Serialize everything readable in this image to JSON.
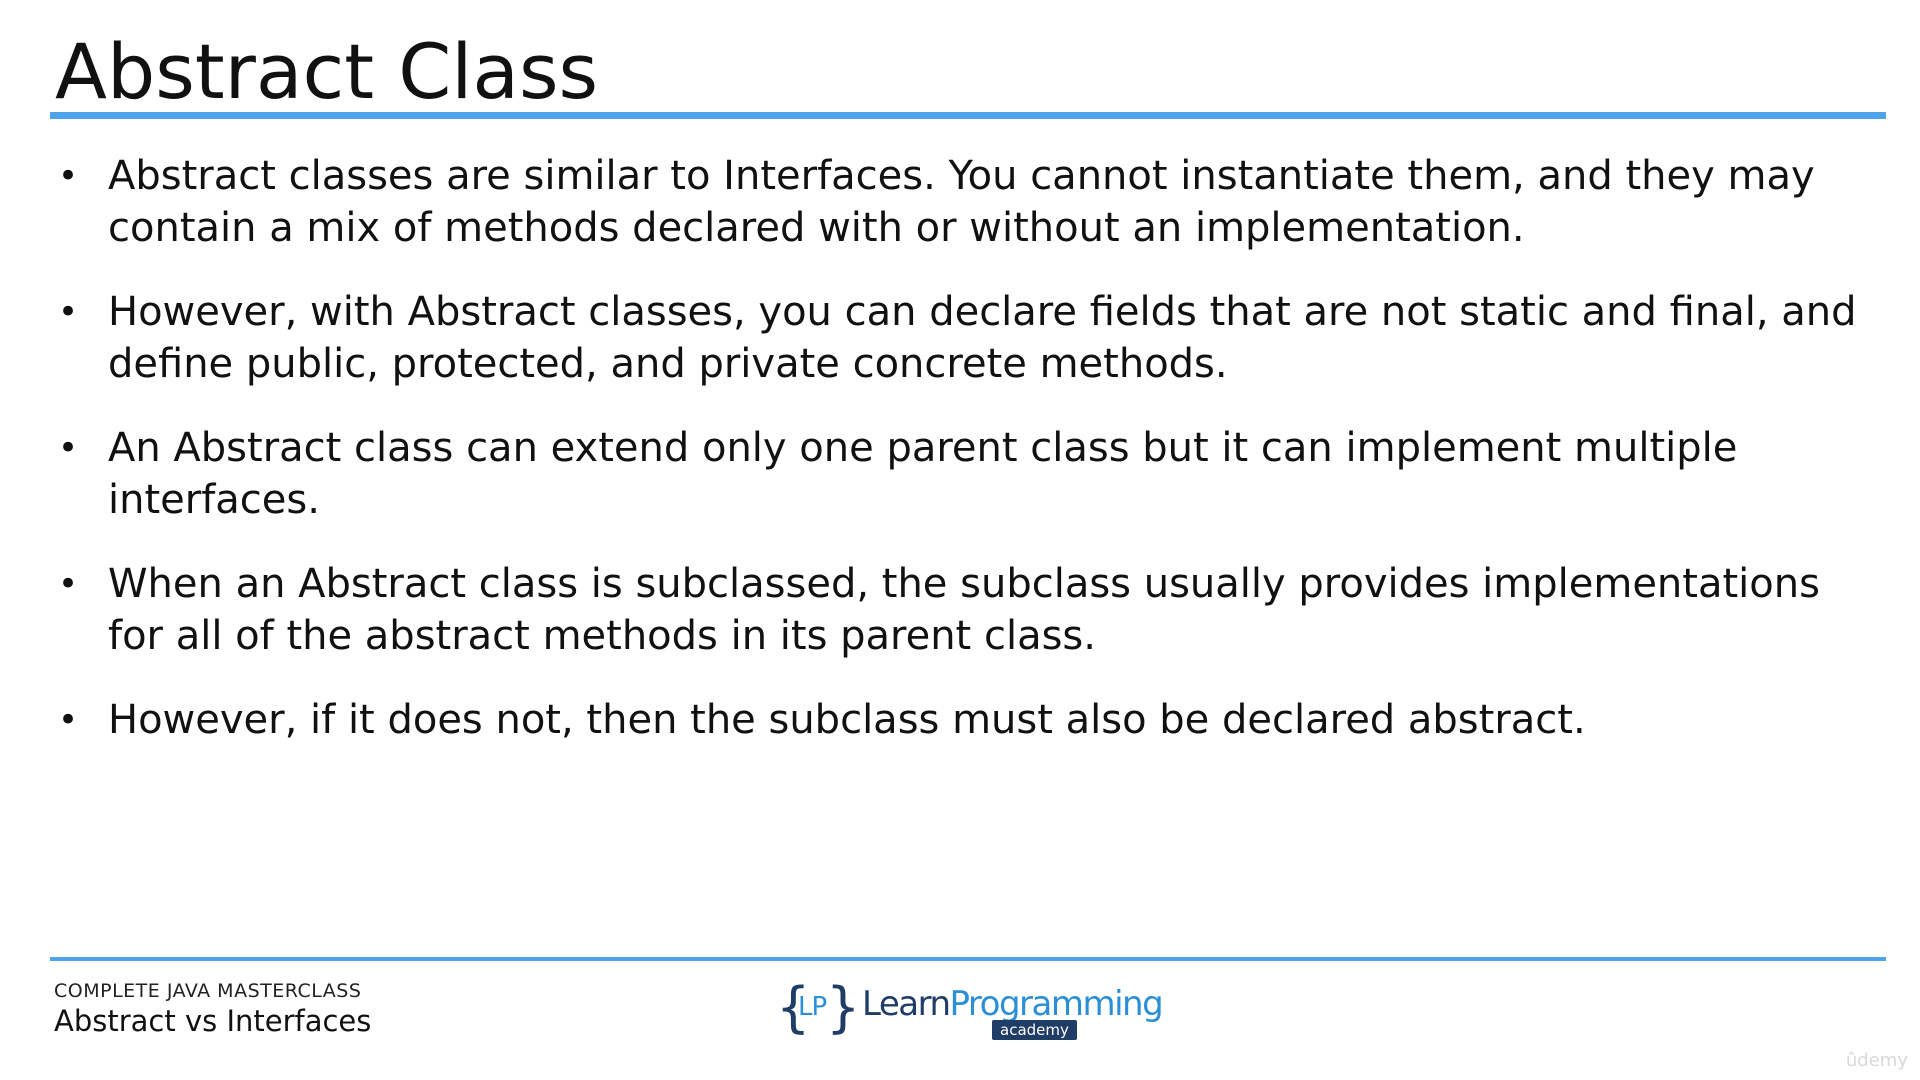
{
  "slide": {
    "title": "Abstract Class",
    "bullets": [
      "Abstract classes are similar to Interfaces. You cannot instantiate them, and they may contain a mix of methods declared with or without an implementation.",
      "However, with Abstract classes, you can declare fields that are not static and final, and define public, protected, and private concrete methods.",
      "An Abstract class can extend only one parent class but it can implement multiple interfaces.",
      "When an Abstract class is subclassed, the subclass usually provides implementations for all of the abstract methods in its parent class.",
      "However, if it does not, then the subclass must also be declared abstract."
    ],
    "bullet_glyph": "•"
  },
  "footer": {
    "course": "COMPLETE JAVA MASTERCLASS",
    "section": "Abstract vs Interfaces",
    "logo": {
      "brace_left": "{",
      "monogram": "LP",
      "brace_right": "}",
      "word_learn": "Learn",
      "word_programming": "Programming",
      "badge": "academy"
    },
    "watermark": "ûdemy"
  },
  "colors": {
    "accent": "#4fa3e8",
    "logo_dark": "#1f3d66",
    "logo_light": "#2b8fd6"
  }
}
